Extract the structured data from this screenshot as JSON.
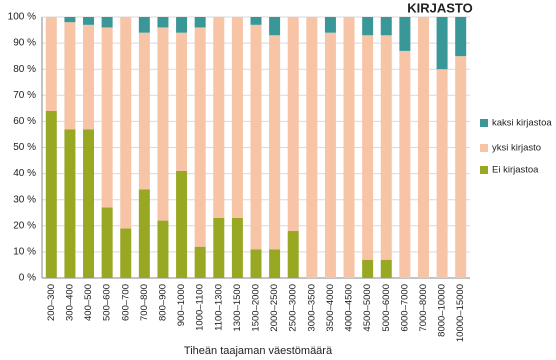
{
  "chart_data": {
    "type": "stacked_bar_100",
    "title": "KIRJASTO",
    "x_label": "Tiheän taajaman väestömäärä",
    "categories": [
      "200–300",
      "300–400",
      "400–500",
      "500–600",
      "600–700",
      "700–800",
      "800–900",
      "900–1000",
      "1000–1100",
      "1100–1300",
      "1300–1500",
      "1500–2000",
      "2000–2500",
      "2500–3000",
      "3000–3500",
      "3500–4000",
      "4000–4500",
      "4500–5000",
      "5000–6000",
      "6000–7000",
      "7000–8000",
      "8000–10000",
      "10000–15000"
    ],
    "series": [
      {
        "name": "Ei kirjastoa",
        "color": "#99a823",
        "values": [
          64,
          57,
          57,
          27,
          19,
          34,
          22,
          41,
          12,
          23,
          23,
          11,
          11,
          18,
          0,
          0,
          0,
          7,
          7,
          0,
          0,
          0,
          0
        ]
      },
      {
        "name": "yksi kirjasto",
        "color": "#f7c4a6",
        "values": [
          36,
          41,
          40,
          69,
          81,
          60,
          74,
          53,
          84,
          77,
          77,
          86,
          82,
          82,
          100,
          94,
          100,
          86,
          86,
          87,
          100,
          80,
          85
        ]
      },
      {
        "name": "kaksi kirjastoa",
        "color": "#3a9797",
        "values": [
          0,
          2,
          3,
          4,
          0,
          6,
          4,
          6,
          4,
          0,
          0,
          3,
          7,
          0,
          0,
          6,
          0,
          7,
          7,
          13,
          0,
          20,
          15
        ]
      }
    ],
    "ylim": [
      0,
      100
    ],
    "yticks": [
      {
        "value": 0,
        "label": "0 %"
      },
      {
        "value": 10,
        "label": "10 %"
      },
      {
        "value": 20,
        "label": "20 %"
      },
      {
        "value": 30,
        "label": "30 %"
      },
      {
        "value": 40,
        "label": "40 %"
      },
      {
        "value": 50,
        "label": "50 %"
      },
      {
        "value": 60,
        "label": "60 %"
      },
      {
        "value": 70,
        "label": "70 %"
      },
      {
        "value": 80,
        "label": "80 %"
      },
      {
        "value": 90,
        "label": "90 %"
      },
      {
        "value": 100,
        "label": "100 %"
      }
    ],
    "grid": true
  }
}
